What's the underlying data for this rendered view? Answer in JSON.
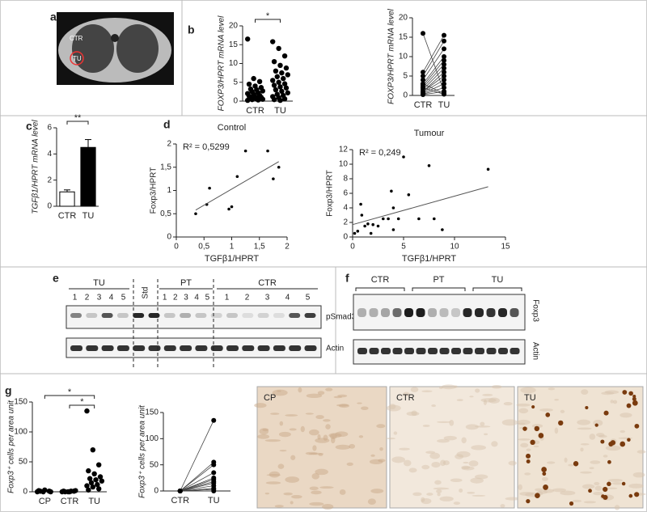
{
  "panel_labels": [
    "a",
    "b",
    "c",
    "d",
    "e",
    "f",
    "g"
  ],
  "ct_image": {
    "labels": [
      "CTR",
      "TU"
    ]
  },
  "blot_e": {
    "groups": [
      "TU",
      "Std",
      "PT",
      "CTR"
    ],
    "lanes": [
      [
        "1",
        "2",
        "3",
        "4",
        "5"
      ],
      [
        "1",
        "2",
        "3",
        "4",
        "5"
      ],
      [
        "1",
        "2",
        "3",
        "4",
        "5"
      ]
    ],
    "proteins": [
      "pSmad3",
      "Actin"
    ]
  },
  "blot_f": {
    "groups": [
      "CTR",
      "PT",
      "TU"
    ],
    "proteins": [
      "Foxp3",
      "Actin"
    ]
  },
  "histology": [
    "CP",
    "CTR",
    "TU"
  ],
  "chart_data": [
    {
      "type": "strip",
      "ylabel": "FOXP3/HPRT mRNA level",
      "categories": [
        "CTR",
        "TU"
      ],
      "color": "#000000",
      "values": [
        [
          16.5,
          6,
          5.2,
          4.5,
          4,
          3.6,
          3.2,
          3,
          2.7,
          2.5,
          2.2,
          2,
          1.8,
          1.5,
          1.3,
          1.1,
          1,
          0.8,
          0.6,
          0.5,
          0.4,
          0.3,
          0.2
        ],
        [
          15.8,
          14,
          12,
          10.5,
          9.5,
          8.8,
          8,
          7.5,
          7,
          6.5,
          6,
          5.5,
          5,
          4.6,
          4.2,
          3.8,
          3.5,
          3,
          2.6,
          2.2,
          1.8,
          1.5,
          1.2,
          0.9,
          0.6,
          0.4,
          0.2
        ]
      ],
      "significance": [
        "*"
      ],
      "ylim": [
        0,
        20
      ],
      "yticks": [
        0,
        5,
        10,
        15,
        20
      ]
    },
    {
      "type": "paired",
      "ylabel": "FOXP3/HPRT mRNA level",
      "categories": [
        "CTR",
        "TU"
      ],
      "color": "#000000",
      "pairs": [
        [
          16,
          1
        ],
        [
          6,
          15.5
        ],
        [
          5,
          14
        ],
        [
          4,
          12
        ],
        [
          3,
          10
        ],
        [
          2.5,
          9
        ],
        [
          2,
          8
        ],
        [
          1.5,
          7
        ],
        [
          1,
          6
        ],
        [
          1,
          5
        ],
        [
          0.8,
          4
        ],
        [
          0.5,
          3
        ],
        [
          0.3,
          2
        ],
        [
          0.2,
          1
        ],
        [
          3,
          0.5
        ],
        [
          2,
          0.3
        ]
      ],
      "ylim": [
        0,
        20
      ],
      "yticks": [
        0,
        5,
        10,
        15,
        20
      ]
    },
    {
      "type": "bar",
      "ylabel": "TGFβ1/HPRT mRNA level",
      "categories": [
        "CTR",
        "TU"
      ],
      "values": [
        1.1,
        4.5
      ],
      "errors": [
        0.15,
        0.6
      ],
      "colors": [
        "#ffffff",
        "#000000"
      ],
      "significance": [
        "**"
      ],
      "ylim": [
        0,
        6
      ],
      "yticks": [
        0,
        2,
        4,
        6
      ]
    },
    {
      "type": "scatter",
      "title": "Control",
      "annotation": "R² = 0,5299",
      "xlabel": "TGFβ1/HPRT",
      "ylabel": "Foxp3/HPRT",
      "color": "#000000",
      "x": [
        0.35,
        0.55,
        0.6,
        0.95,
        1.0,
        1.1,
        1.25,
        1.65,
        1.75,
        1.85
      ],
      "y": [
        0.5,
        0.7,
        1.05,
        0.6,
        0.65,
        1.3,
        1.85,
        1.85,
        1.25,
        1.5
      ],
      "trendline": {
        "x": [
          0.35,
          1.85
        ],
        "y": [
          0.58,
          1.62
        ]
      },
      "xlim": [
        0,
        2
      ],
      "xticks": [
        0,
        {
          "value": 0.5,
          "label": "0,5"
        },
        1,
        {
          "value": 1.5,
          "label": "1,5"
        },
        2
      ],
      "ylim": [
        0,
        2
      ],
      "yticks": [
        0,
        {
          "value": 0.5,
          "label": "0,5"
        },
        1,
        {
          "value": 1.5,
          "label": "1,5"
        },
        2
      ]
    },
    {
      "type": "scatter",
      "title": "Tumour",
      "annotation": "R² = 0,249",
      "xlabel": "TGFβ1/HPRT",
      "ylabel": "Foxp3/HPRT",
      "color": "#000000",
      "x": [
        0.2,
        0.5,
        0.8,
        0.9,
        1.2,
        1.5,
        1.8,
        2,
        2.5,
        3,
        3.5,
        3.8,
        4,
        4,
        4.5,
        5,
        5.5,
        6.5,
        7.5,
        8,
        8.8,
        13.3
      ],
      "y": [
        0.5,
        0.8,
        4.5,
        3,
        1.5,
        1.8,
        0.5,
        1.7,
        1.5,
        2.5,
        2.5,
        6.3,
        4,
        1,
        2.5,
        11,
        5.8,
        2.5,
        9.8,
        2.5,
        1,
        9.3
      ],
      "trendline": {
        "x": [
          0,
          13.3
        ],
        "y": [
          1.7,
          6.9
        ]
      },
      "xlim": [
        0,
        15
      ],
      "xticks": [
        0,
        5,
        10,
        15
      ],
      "ylim": [
        0,
        12
      ],
      "yticks": [
        0,
        2,
        4,
        6,
        8,
        10,
        12
      ]
    },
    {
      "type": "strip",
      "ylabel": "Foxp3⁺ cells per area unit",
      "categories": [
        "CP",
        "CTR",
        "TU"
      ],
      "color": "#000000",
      "values": [
        [
          0,
          0,
          1,
          2,
          3,
          0,
          1
        ],
        [
          0,
          0,
          1,
          1,
          0,
          2,
          0,
          1
        ],
        [
          135,
          70,
          45,
          35,
          30,
          25,
          22,
          20,
          18,
          15,
          12,
          10,
          8,
          5,
          3
        ]
      ],
      "significance": [
        "*",
        "*"
      ],
      "ylim": [
        0,
        150
      ],
      "yticks": [
        0,
        50,
        100,
        150
      ]
    },
    {
      "type": "paired",
      "ylabel": "Foxp3⁺ cells per area unit",
      "categories": [
        "CTR",
        "TU"
      ],
      "color": "#000000",
      "pairs": [
        [
          0,
          135
        ],
        [
          0,
          55
        ],
        [
          0,
          50
        ],
        [
          0,
          35
        ],
        [
          0,
          25
        ],
        [
          0,
          22
        ],
        [
          0,
          18
        ],
        [
          0,
          15
        ],
        [
          0,
          10
        ],
        [
          0,
          5
        ],
        [
          0,
          3
        ],
        [
          0,
          0
        ]
      ],
      "ylim": [
        0,
        150
      ],
      "yticks": [
        0,
        50,
        100,
        150
      ]
    }
  ]
}
